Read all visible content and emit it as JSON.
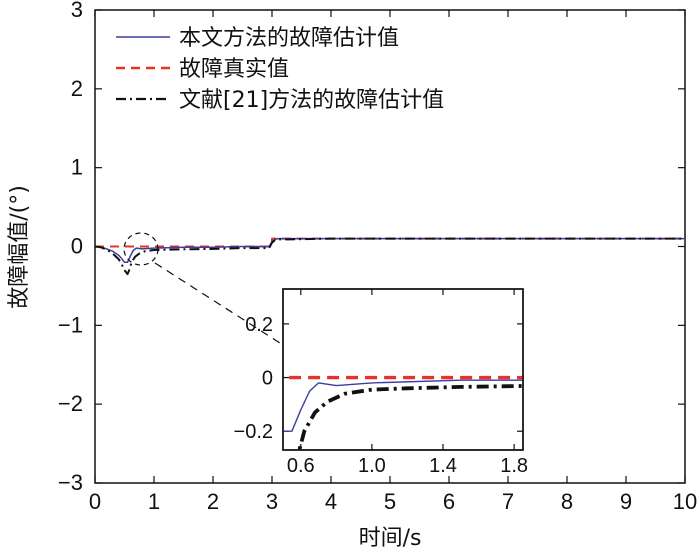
{
  "colors": {
    "proposed": "#3a3fa0",
    "true_fault": "#e8312a",
    "reference": "#111111",
    "axis": "#111111"
  },
  "chart_data": {
    "type": "line",
    "title": "",
    "xlabel": "时间/s",
    "ylabel": "故障幅值/(°)",
    "xlim": [
      0,
      10
    ],
    "ylim": [
      -3,
      3
    ],
    "xticks": [
      0,
      1,
      2,
      3,
      4,
      5,
      6,
      7,
      8,
      9,
      10
    ],
    "yticks": [
      -3,
      -2,
      -1,
      0,
      1,
      2,
      3
    ],
    "grid": false,
    "legend": "top-left",
    "series": [
      {
        "name": "本文方法的故障估计值",
        "color": "#3a3fa0",
        "style": "solid",
        "x": [
          0,
          0.1,
          0.2,
          0.3,
          0.4,
          0.45,
          0.5,
          0.55,
          0.6,
          0.65,
          0.7,
          0.8,
          1.0,
          1.5,
          2.0,
          2.5,
          2.95,
          3.0,
          3.05,
          3.1,
          3.3,
          4.0,
          5.0,
          6.0,
          7.0,
          8.0,
          9.0,
          10.0
        ],
        "y": [
          0,
          -0.01,
          -0.03,
          -0.06,
          -0.11,
          -0.15,
          -0.2,
          -0.2,
          -0.12,
          -0.05,
          -0.02,
          -0.03,
          -0.02,
          -0.01,
          -0.01,
          0,
          0,
          0.06,
          0.09,
          0.1,
          0.1,
          0.1,
          0.1,
          0.1,
          0.1,
          0.1,
          0.1,
          0.1
        ]
      },
      {
        "name": "故障真实值",
        "color": "#e8312a",
        "style": "dashed",
        "x": [
          0,
          3.0,
          3.0,
          10.0
        ],
        "y": [
          0,
          0,
          0.1,
          0.1
        ]
      },
      {
        "name": "文献[21]方法的故障估计值",
        "color": "#111111",
        "style": "dashdot",
        "x": [
          0,
          0.1,
          0.2,
          0.3,
          0.4,
          0.45,
          0.5,
          0.55,
          0.58,
          0.62,
          0.68,
          0.75,
          0.85,
          1.0,
          1.2,
          1.5,
          2.0,
          2.5,
          2.95,
          3.0,
          3.05,
          3.1,
          3.3,
          4.0,
          5.0,
          6.0,
          7.0,
          8.0,
          9.0,
          10.0
        ],
        "y": [
          0,
          -0.01,
          -0.04,
          -0.09,
          -0.16,
          -0.22,
          -0.3,
          -0.35,
          -0.3,
          -0.2,
          -0.13,
          -0.09,
          -0.06,
          -0.045,
          -0.04,
          -0.035,
          -0.03,
          -0.02,
          -0.02,
          0.05,
          0.08,
          0.09,
          0.09,
          0.1,
          0.1,
          0.1,
          0.1,
          0.1,
          0.1,
          0.1
        ]
      }
    ],
    "inset": {
      "xlim": [
        0.5,
        1.85
      ],
      "ylim": [
        -0.27,
        0.33
      ],
      "xticks": [
        0.6,
        1.0,
        1.4,
        1.8
      ],
      "xtick_labels": [
        "0.6",
        "1.0",
        "1.4",
        "1.8"
      ],
      "yticks": [
        0.2,
        0,
        -0.2
      ],
      "ytick_labels": [
        "0.2",
        "0",
        "−0.2"
      ],
      "zoom_center": [
        0.75,
        -0.05
      ]
    },
    "ytick_labels": [
      "−3",
      "−2",
      "−1",
      "0",
      "1",
      "2",
      "3"
    ],
    "xtick_labels": [
      "0",
      "1",
      "2",
      "3",
      "4",
      "5",
      "6",
      "7",
      "8",
      "9",
      "10"
    ]
  }
}
